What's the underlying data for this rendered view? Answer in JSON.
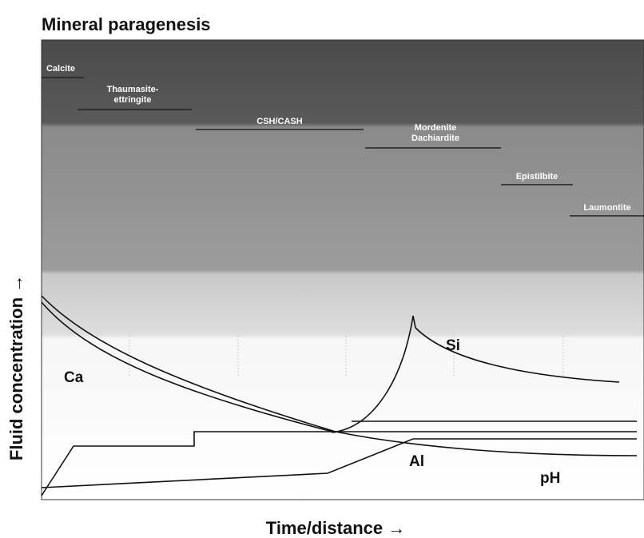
{
  "title": "Mineral paragenesis",
  "x_axis_label": "Time/distance →",
  "y_axis_label": "Fluid concentration →",
  "minerals": [
    {
      "lines": [
        "Calcite"
      ]
    },
    {
      "lines": [
        "Thaumasite-",
        "ettringite"
      ]
    },
    {
      "lines": [
        "CSH/CASH"
      ]
    },
    {
      "lines": [
        "Mordenite",
        "Dachiardite"
      ]
    },
    {
      "lines": [
        "Epistilbite"
      ]
    },
    {
      "lines": [
        "Laumontite"
      ]
    }
  ],
  "curve_labels": [
    "Ca",
    "Si",
    "Al",
    "pH"
  ]
}
